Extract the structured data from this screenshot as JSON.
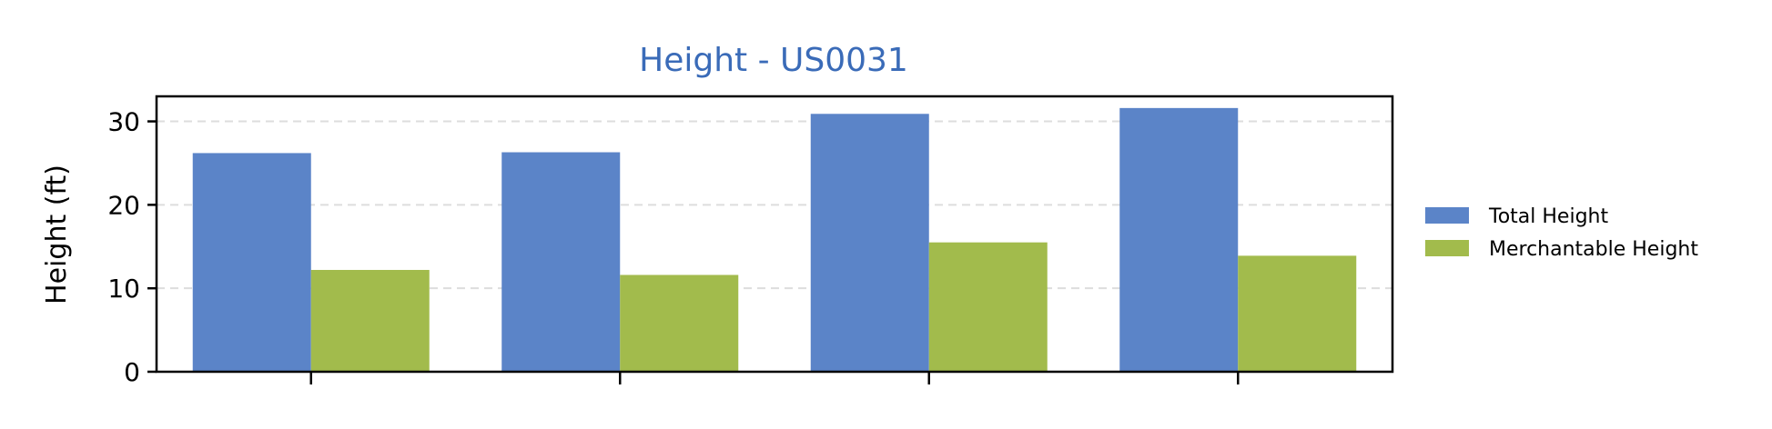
{
  "chart_data": {
    "type": "bar",
    "title": "Height - US0031",
    "xlabel": "",
    "ylabel": "Height (ft)",
    "categories": [
      "",
      "",
      "",
      ""
    ],
    "series": [
      {
        "name": "Total Height",
        "color": "#5b84c8",
        "values": [
          26.2,
          26.3,
          30.9,
          31.6
        ]
      },
      {
        "name": "Merchantable Height",
        "color": "#a2bb4c",
        "values": [
          12.2,
          11.6,
          15.5,
          13.9
        ]
      }
    ],
    "ylim": [
      0,
      33
    ],
    "yticks": [
      0,
      10,
      20,
      30
    ],
    "grid": true,
    "legend_position": "right",
    "title_color": "#3a6bb8"
  }
}
